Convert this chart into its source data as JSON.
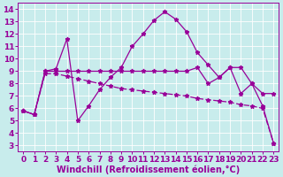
{
  "line1_x": [
    0,
    1,
    2,
    3,
    4,
    5,
    6,
    7,
    8,
    9,
    10,
    11,
    12,
    13,
    14,
    15,
    16,
    17,
    18,
    19,
    20,
    21,
    22,
    23
  ],
  "line1_y": [
    5.8,
    5.5,
    9.0,
    9.2,
    11.6,
    5.0,
    6.2,
    7.5,
    8.5,
    9.3,
    11.0,
    12.0,
    13.1,
    13.8,
    13.2,
    12.2,
    10.5,
    9.5,
    8.5,
    9.3,
    7.2,
    8.0,
    6.2,
    3.2
  ],
  "line2_x": [
    0,
    1,
    2,
    3,
    4,
    5,
    6,
    7,
    8,
    9,
    10,
    11,
    12,
    13,
    14,
    15,
    16,
    17,
    18,
    19,
    20,
    21,
    22,
    23
  ],
  "line2_y": [
    5.8,
    5.5,
    8.8,
    8.8,
    8.6,
    8.4,
    8.2,
    8.0,
    7.8,
    7.6,
    7.5,
    7.4,
    7.3,
    7.2,
    7.1,
    7.0,
    6.8,
    6.7,
    6.6,
    6.5,
    6.3,
    6.2,
    6.0,
    3.2
  ],
  "line3_x": [
    0,
    1,
    2,
    3,
    4,
    5,
    6,
    7,
    8,
    9,
    10,
    11,
    12,
    13,
    14,
    15,
    16,
    17,
    18,
    19,
    20,
    21,
    22,
    23
  ],
  "line3_y": [
    5.8,
    5.5,
    9.0,
    9.0,
    9.0,
    9.0,
    9.0,
    9.0,
    9.0,
    9.0,
    9.0,
    9.0,
    9.0,
    9.0,
    9.0,
    9.0,
    9.3,
    8.0,
    8.5,
    9.3,
    9.3,
    8.0,
    7.2,
    7.2
  ],
  "bg_color": "#c8ecec",
  "line_color": "#990099",
  "grid_color": "#ffffff",
  "xlabel": "Windchill (Refroidissement éolien,°C)",
  "xlim": [
    -0.5,
    23.5
  ],
  "ylim": [
    2.5,
    14.5
  ],
  "yticks": [
    3,
    4,
    5,
    6,
    7,
    8,
    9,
    10,
    11,
    12,
    13,
    14
  ],
  "xticks": [
    0,
    1,
    2,
    3,
    4,
    5,
    6,
    7,
    8,
    9,
    10,
    11,
    12,
    13,
    14,
    15,
    16,
    17,
    18,
    19,
    20,
    21,
    22,
    23
  ],
  "xlabel_fontsize": 7,
  "tick_fontsize": 6.5,
  "markersize": 3.5,
  "linewidth": 0.9
}
